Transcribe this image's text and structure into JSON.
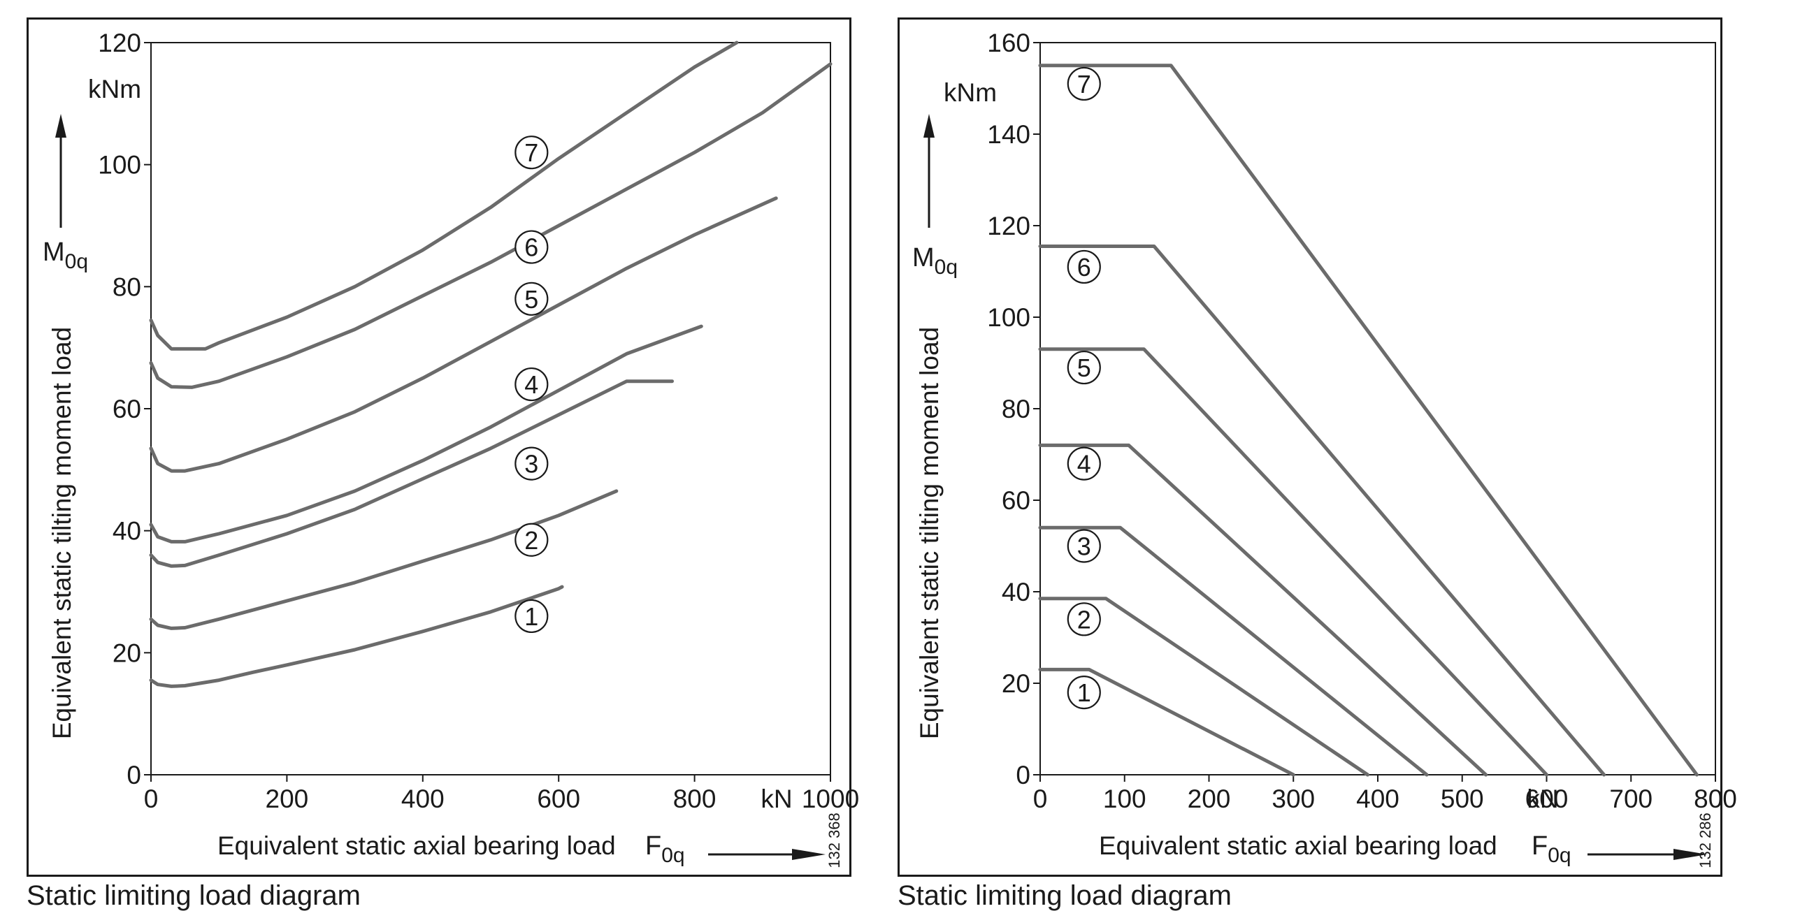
{
  "chart_data": [
    {
      "type": "line",
      "ylabel": "Equivalent static tilting moment load",
      "ysymbol": "M",
      "ysymbol_sub": "0q",
      "yunit": "kNm",
      "xlabel": "Equivalent static axial bearing load",
      "xsymbol": "F",
      "xsymbol_sub": "0q",
      "xunit": "kN",
      "xlim": [
        0,
        1000
      ],
      "ylim": [
        0,
        120
      ],
      "xticks": [
        0,
        200,
        400,
        600,
        800,
        1000
      ],
      "yticks": [
        0,
        20,
        40,
        60,
        80,
        100,
        120
      ],
      "grid": false,
      "code": "132 368",
      "caption": "Static limiting load diagram",
      "series": [
        {
          "name": "1",
          "marker": {
            "x": 560,
            "y": 26
          },
          "points": [
            [
              0,
              15.5
            ],
            [
              10,
              14.8
            ],
            [
              30,
              14.5
            ],
            [
              50,
              14.6
            ],
            [
              100,
              15.5
            ],
            [
              150,
              16.8
            ],
            [
              200,
              18
            ],
            [
              300,
              20.5
            ],
            [
              400,
              23.5
            ],
            [
              500,
              26.7
            ],
            [
              600,
              30.5
            ],
            [
              605,
              30.8
            ]
          ]
        },
        {
          "name": "2",
          "marker": {
            "x": 560,
            "y": 38.5
          },
          "points": [
            [
              0,
              25.5
            ],
            [
              10,
              24.5
            ],
            [
              30,
              24
            ],
            [
              50,
              24.1
            ],
            [
              100,
              25.5
            ],
            [
              150,
              27
            ],
            [
              200,
              28.5
            ],
            [
              300,
              31.5
            ],
            [
              400,
              35
            ],
            [
              500,
              38.5
            ],
            [
              600,
              42.5
            ],
            [
              685,
              46.5
            ]
          ]
        },
        {
          "name": "3",
          "marker": {
            "x": 560,
            "y": 51
          },
          "points": [
            [
              0,
              36
            ],
            [
              10,
              34.8
            ],
            [
              30,
              34.2
            ],
            [
              50,
              34.3
            ],
            [
              100,
              36
            ],
            [
              200,
              39.5
            ],
            [
              300,
              43.5
            ],
            [
              400,
              48.5
            ],
            [
              500,
              53.5
            ],
            [
              600,
              59
            ],
            [
              700,
              64.5
            ],
            [
              767,
              64.5
            ]
          ]
        },
        {
          "name": "4",
          "marker": {
            "x": 560,
            "y": 64
          },
          "points": [
            [
              0,
              41
            ],
            [
              10,
              39
            ],
            [
              30,
              38.2
            ],
            [
              50,
              38.2
            ],
            [
              100,
              39.5
            ],
            [
              200,
              42.5
            ],
            [
              300,
              46.5
            ],
            [
              400,
              51.5
            ],
            [
              500,
              57
            ],
            [
              600,
              63
            ],
            [
              700,
              69
            ],
            [
              810,
              73.5
            ]
          ]
        },
        {
          "name": "5",
          "marker": {
            "x": 560,
            "y": 78
          },
          "points": [
            [
              0,
              53.5
            ],
            [
              10,
              51
            ],
            [
              30,
              49.8
            ],
            [
              50,
              49.8
            ],
            [
              100,
              51
            ],
            [
              200,
              55
            ],
            [
              300,
              59.5
            ],
            [
              400,
              65
            ],
            [
              500,
              71
            ],
            [
              600,
              77
            ],
            [
              700,
              83
            ],
            [
              800,
              88.5
            ],
            [
              920,
              94.5
            ]
          ]
        },
        {
          "name": "6",
          "marker": {
            "x": 560,
            "y": 86.5
          },
          "points": [
            [
              0,
              67.5
            ],
            [
              10,
              65
            ],
            [
              30,
              63.6
            ],
            [
              60,
              63.5
            ],
            [
              100,
              64.5
            ],
            [
              200,
              68.5
            ],
            [
              300,
              73
            ],
            [
              400,
              78.5
            ],
            [
              500,
              84
            ],
            [
              600,
              90
            ],
            [
              700,
              96
            ],
            [
              800,
              102
            ],
            [
              900,
              108.5
            ],
            [
              1000,
              116.5
            ]
          ]
        },
        {
          "name": "7",
          "marker": {
            "x": 560,
            "y": 102
          },
          "points": [
            [
              0,
              74.5
            ],
            [
              10,
              72
            ],
            [
              30,
              69.8
            ],
            [
              80,
              69.8
            ],
            [
              100,
              70.8
            ],
            [
              200,
              75
            ],
            [
              300,
              80
            ],
            [
              400,
              86
            ],
            [
              500,
              93
            ],
            [
              600,
              101
            ],
            [
              700,
              108.5
            ],
            [
              800,
              116
            ],
            [
              862,
              120
            ]
          ]
        }
      ]
    },
    {
      "type": "line",
      "ylabel": "Equivalent static tilting moment load",
      "ysymbol": "M",
      "ysymbol_sub": "0q",
      "yunit": "kNm",
      "xlabel": "Equivalent static axial bearing load",
      "xsymbol": "F",
      "xsymbol_sub": "0q",
      "xunit": "kN",
      "xlim": [
        0,
        800
      ],
      "ylim": [
        0,
        160
      ],
      "xticks": [
        0,
        100,
        200,
        300,
        400,
        500,
        600,
        700,
        800
      ],
      "yticks": [
        0,
        20,
        40,
        60,
        80,
        100,
        120,
        140,
        160
      ],
      "grid": false,
      "code": "132 286",
      "caption": "Static limiting load diagram",
      "series": [
        {
          "name": "1",
          "marker": {
            "x": 52,
            "y": 18
          },
          "points": [
            [
              0,
              23
            ],
            [
              58,
              23
            ],
            [
              300,
              0
            ]
          ]
        },
        {
          "name": "2",
          "marker": {
            "x": 52,
            "y": 34
          },
          "points": [
            [
              0,
              38.5
            ],
            [
              78,
              38.5
            ],
            [
              388,
              0
            ]
          ]
        },
        {
          "name": "3",
          "marker": {
            "x": 52,
            "y": 50
          },
          "points": [
            [
              0,
              54
            ],
            [
              95,
              54
            ],
            [
              458,
              0
            ]
          ]
        },
        {
          "name": "4",
          "marker": {
            "x": 52,
            "y": 68
          },
          "points": [
            [
              0,
              72
            ],
            [
              105,
              72
            ],
            [
              528,
              0
            ]
          ]
        },
        {
          "name": "5",
          "marker": {
            "x": 52,
            "y": 89
          },
          "points": [
            [
              0,
              93
            ],
            [
              123,
              93
            ],
            [
              600,
              0
            ]
          ]
        },
        {
          "name": "6",
          "marker": {
            "x": 52,
            "y": 111
          },
          "points": [
            [
              0,
              115.5
            ],
            [
              135,
              115.5
            ],
            [
              668,
              0
            ]
          ]
        },
        {
          "name": "7",
          "marker": {
            "x": 52,
            "y": 151
          },
          "points": [
            [
              0,
              155
            ],
            [
              155,
              155
            ],
            [
              778,
              0
            ]
          ]
        }
      ]
    }
  ]
}
